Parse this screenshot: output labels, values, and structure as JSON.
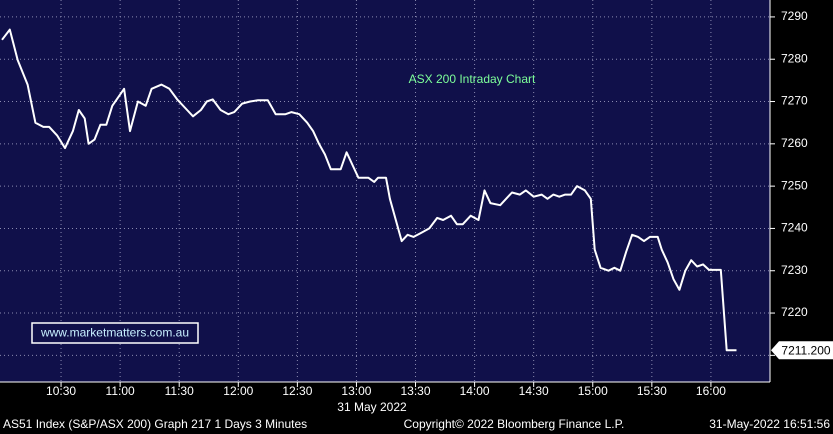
{
  "chart_data": {
    "type": "line",
    "title": "ASX 200 Intraday Chart",
    "watermark": "www.marketmatters.com.au",
    "date_label": "31 May 2022",
    "footer_left": "AS51 Index (S&P/ASX 200) Graph 217 1 Days 3 Minutes",
    "footer_center": "Copyright© 2022 Bloomberg Finance L.P.",
    "footer_right": "31-May-2022 16:51:56",
    "color": "#ffffff",
    "background": "#10104a",
    "title_color": "#7dff9a",
    "grid": true,
    "xlim": [
      599,
      990
    ],
    "ylim": [
      7203.7,
      7294
    ],
    "xticks": [
      {
        "value": 630,
        "label": "10:30"
      },
      {
        "value": 660,
        "label": "11:00"
      },
      {
        "value": 690,
        "label": "11:30"
      },
      {
        "value": 720,
        "label": "12:00"
      },
      {
        "value": 750,
        "label": "12:30"
      },
      {
        "value": 780,
        "label": "13:00"
      },
      {
        "value": 810,
        "label": "13:30"
      },
      {
        "value": 840,
        "label": "14:00"
      },
      {
        "value": 870,
        "label": "14:30"
      },
      {
        "value": 900,
        "label": "15:00"
      },
      {
        "value": 930,
        "label": "15:30"
      },
      {
        "value": 960,
        "label": "16:00"
      }
    ],
    "yticks": [
      7210,
      7220,
      7230,
      7240,
      7250,
      7260,
      7270,
      7280,
      7290
    ],
    "last_price": {
      "value": 7211.2,
      "label": "7211.200"
    },
    "x": [
      600,
      604,
      608,
      613,
      617,
      621,
      624,
      628,
      632,
      636,
      639,
      642,
      644,
      647,
      650,
      653,
      656,
      662,
      665,
      669,
      673,
      676,
      681,
      685,
      689,
      694,
      697,
      701,
      704,
      707,
      711,
      715,
      718,
      722,
      726,
      730,
      735,
      739,
      744,
      747,
      751,
      755,
      758,
      761,
      764,
      767,
      772,
      775,
      778,
      781,
      786,
      789,
      791,
      795,
      797,
      800,
      803,
      806,
      809,
      813,
      817,
      821,
      824,
      828,
      831,
      834,
      838,
      842,
      845,
      848,
      853,
      856,
      859,
      863,
      866,
      870,
      874,
      877,
      880,
      883,
      886,
      889,
      892,
      896,
      899,
      901,
      904,
      908,
      911,
      914,
      917,
      920,
      923,
      926,
      929,
      933,
      935,
      938,
      941,
      944,
      947,
      950,
      953,
      956,
      959,
      962,
      965,
      968,
      973
    ],
    "values": [
      7284.6,
      7287,
      7279.8,
      7274,
      7265,
      7264,
      7264,
      7262,
      7259,
      7263,
      7268,
      7266,
      7260,
      7261,
      7264.5,
      7264.5,
      7269,
      7273,
      7263,
      7270,
      7269,
      7273,
      7274,
      7273,
      7270.5,
      7268,
      7266.5,
      7268,
      7270,
      7270.5,
      7268,
      7267,
      7267.5,
      7269.5,
      7270,
      7270.3,
      7270.3,
      7267,
      7267,
      7267.5,
      7267,
      7265,
      7263,
      7260,
      7257.5,
      7254,
      7254,
      7258,
      7255,
      7252,
      7252,
      7251,
      7252,
      7252,
      7247,
      7242,
      7237,
      7238.5,
      7238,
      7239,
      7240,
      7242.5,
      7242,
      7243,
      7241,
      7241,
      7243,
      7242,
      7249,
      7246,
      7245.5,
      7247,
      7248.5,
      7248,
      7249,
      7247.5,
      7248,
      7247,
      7248,
      7247.5,
      7248,
      7248,
      7250,
      7249,
      7247,
      7235,
      7230.7,
      7230,
      7230.7,
      7230,
      7234.5,
      7238.5,
      7238,
      7237,
      7238,
      7238,
      7235,
      7232,
      7228,
      7225.5,
      7230,
      7232.5,
      7231,
      7231.5,
      7230.2,
      7230.2,
      7230.2,
      7211.2,
      7211.2
    ]
  }
}
